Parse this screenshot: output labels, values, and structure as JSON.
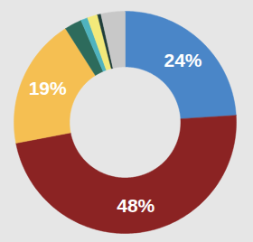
{
  "chart_data": {
    "type": "donut",
    "values": [
      24,
      48,
      19,
      2.5,
      1,
      1.5,
      0.5,
      3.5
    ],
    "value_labels": [
      "24%",
      "48%",
      "19%",
      null,
      null,
      null,
      null,
      null
    ],
    "colors": [
      "#4a86c8",
      "#8b2323",
      "#f5bf52",
      "#2d6b5c",
      "#4fb3bf",
      "#f2e97a",
      "#1f3d3a",
      "#c8c8c8"
    ],
    "data_labels": true
  }
}
